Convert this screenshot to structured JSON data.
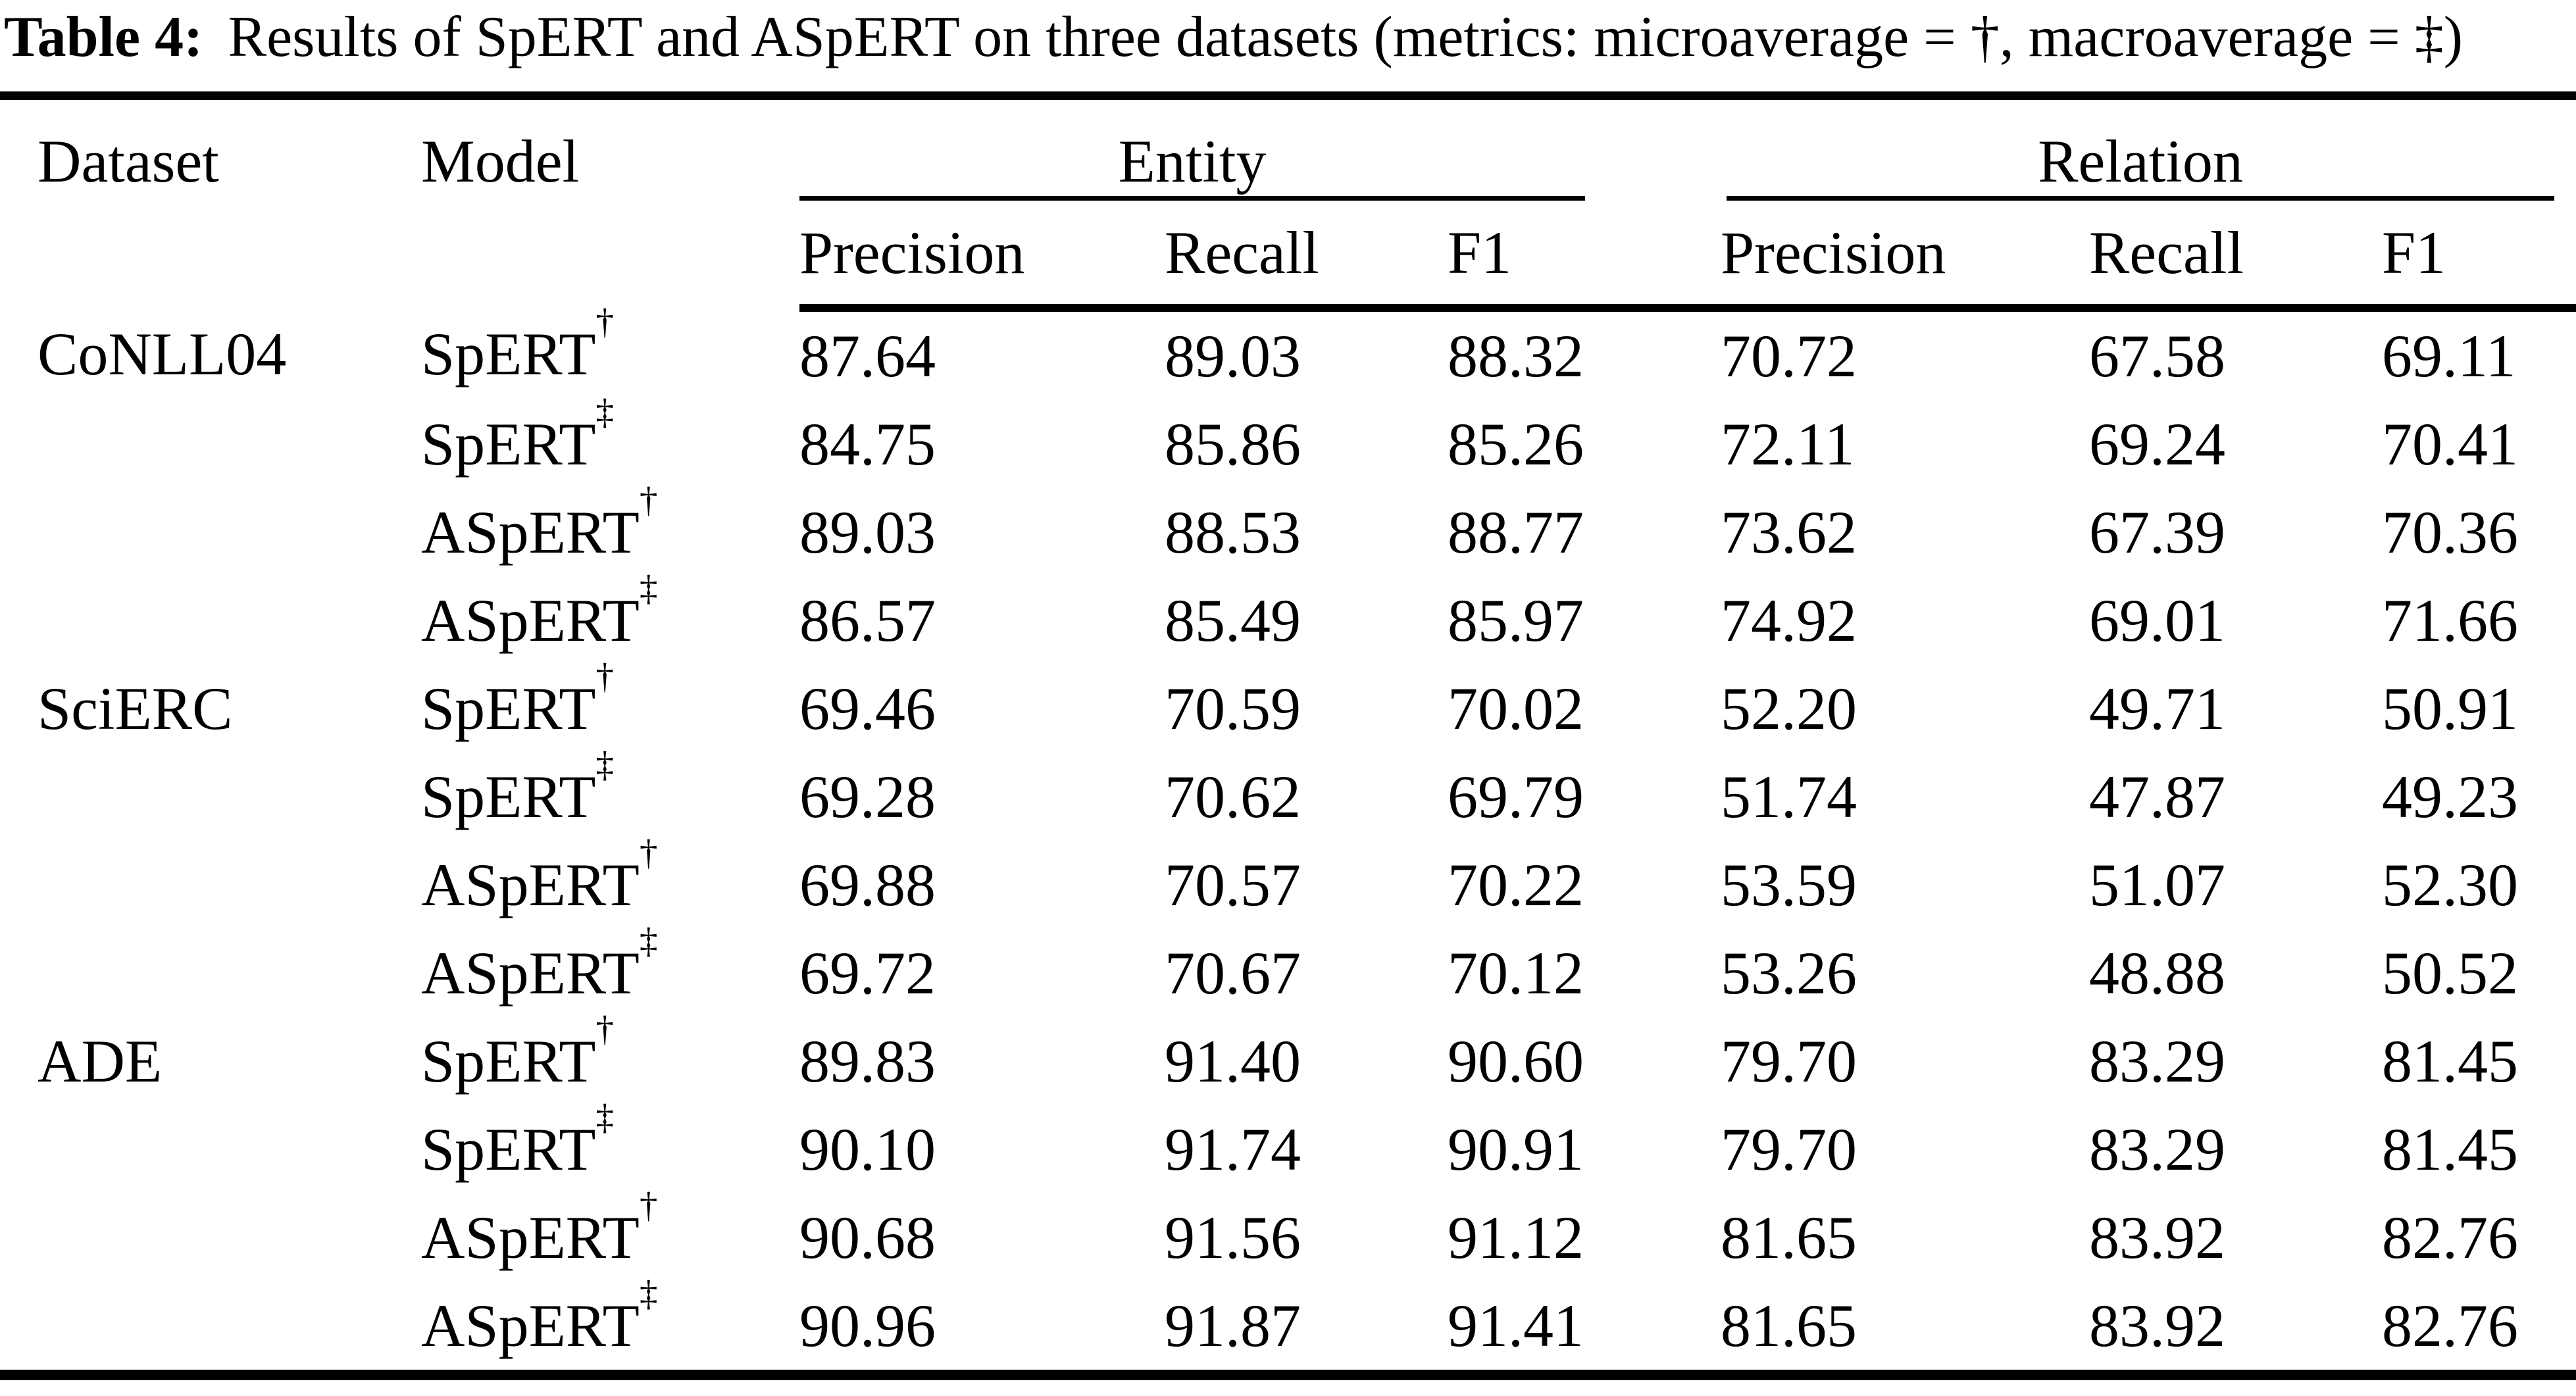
{
  "caption": {
    "label": "Table 4:",
    "text": "Results of SpERT and ASpERT on three datasets (metrics: microaverage = †, macroaverage = ‡)"
  },
  "table": {
    "headers": {
      "dataset": "Dataset",
      "model": "Model",
      "entity": "Entity",
      "relation": "Relation",
      "precision": "Precision",
      "recall": "Recall",
      "f1": "F1"
    },
    "rows": [
      {
        "dataset": "CoNLL04",
        "model": "SpERT",
        "sup": "†",
        "values": [
          "87.64",
          "89.03",
          "88.32",
          "70.72",
          "67.58",
          "69.11"
        ]
      },
      {
        "dataset": "",
        "model": "SpERT",
        "sup": "‡",
        "values": [
          "84.75",
          "85.86",
          "85.26",
          "72.11",
          "69.24",
          "70.41"
        ]
      },
      {
        "dataset": "",
        "model": "ASpERT",
        "sup": "†",
        "values": [
          "89.03",
          "88.53",
          "88.77",
          "73.62",
          "67.39",
          "70.36"
        ]
      },
      {
        "dataset": "",
        "model": "ASpERT",
        "sup": "‡",
        "values": [
          "86.57",
          "85.49",
          "85.97",
          "74.92",
          "69.01",
          "71.66"
        ]
      },
      {
        "dataset": "SciERC",
        "model": "SpERT",
        "sup": "†",
        "values": [
          "69.46",
          "70.59",
          "70.02",
          "52.20",
          "49.71",
          "50.91"
        ]
      },
      {
        "dataset": "",
        "model": "SpERT",
        "sup": "‡",
        "values": [
          "69.28",
          "70.62",
          "69.79",
          "51.74",
          "47.87",
          "49.23"
        ]
      },
      {
        "dataset": "",
        "model": "ASpERT",
        "sup": "†",
        "values": [
          "69.88",
          "70.57",
          "70.22",
          "53.59",
          "51.07",
          "52.30"
        ]
      },
      {
        "dataset": "",
        "model": "ASpERT",
        "sup": "‡",
        "values": [
          "69.72",
          "70.67",
          "70.12",
          "53.26",
          "48.88",
          "50.52"
        ]
      },
      {
        "dataset": "ADE",
        "model": "SpERT",
        "sup": "†",
        "values": [
          "89.83",
          "91.40",
          "90.60",
          "79.70",
          "83.29",
          "81.45"
        ]
      },
      {
        "dataset": "",
        "model": "SpERT",
        "sup": "‡",
        "values": [
          "90.10",
          "91.74",
          "90.91",
          "79.70",
          "83.29",
          "81.45"
        ]
      },
      {
        "dataset": "",
        "model": "ASpERT",
        "sup": "†",
        "values": [
          "90.68",
          "91.56",
          "91.12",
          "81.65",
          "83.92",
          "82.76"
        ]
      },
      {
        "dataset": "",
        "model": "ASpERT",
        "sup": "‡",
        "values": [
          "90.96",
          "91.87",
          "91.41",
          "81.65",
          "83.92",
          "82.76"
        ]
      }
    ]
  },
  "colors": {
    "text": "#000000",
    "background": "#ffffff",
    "rule": "#000000"
  }
}
